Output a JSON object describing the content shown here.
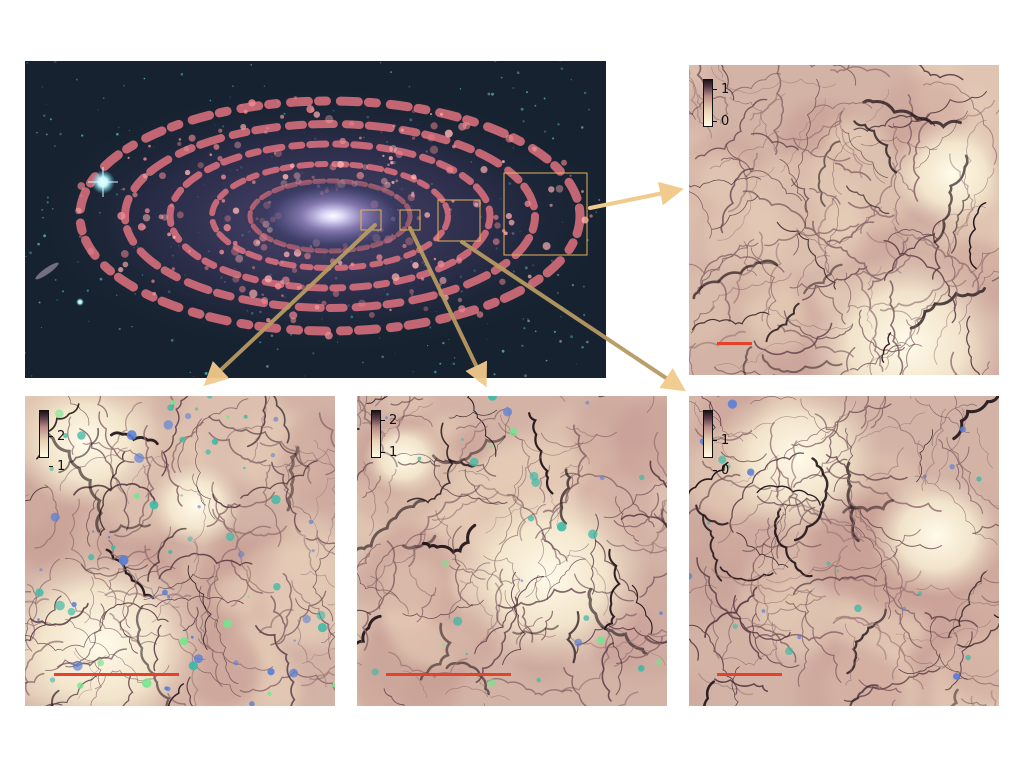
{
  "figure": {
    "arrow_color": "#f1cb8d",
    "scalebar_color": "#e8412b",
    "box_color": "#e8b25a"
  },
  "panels": {
    "top_right": {
      "colorbar_ticks": [
        "1",
        "0"
      ]
    },
    "bottom_left": {
      "colorbar_ticks": [
        "2",
        "1"
      ]
    },
    "bottom_mid": {
      "colorbar_ticks": [
        "2",
        "1"
      ]
    },
    "bottom_right": {
      "colorbar_ticks": [
        "1",
        "0"
      ]
    }
  }
}
